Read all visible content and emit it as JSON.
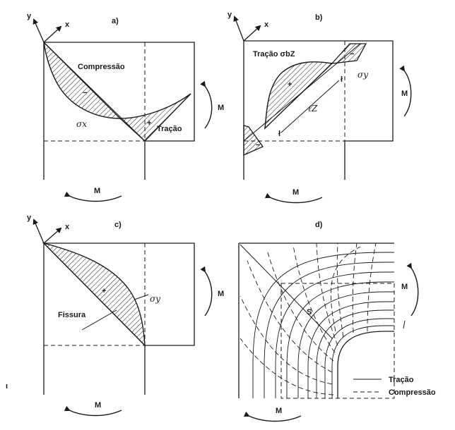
{
  "panels": {
    "a": {
      "id": "a)",
      "axis_y": "y",
      "axis_x": "x",
      "compression": "Compressão",
      "tension": "Tração",
      "sigma": "σx",
      "moment_right": "M",
      "moment_bottom": "M",
      "sign_minus": "−",
      "sign_plus": "+"
    },
    "b": {
      "id": "b)",
      "axis_y": "y",
      "axis_x": "x",
      "tension": "Tração σbZ",
      "sigma": "σy",
      "lever": "ℓZ",
      "moment_right": "M",
      "moment_bottom": "M",
      "sign_plus": "+",
      "sign_minus_top": "−",
      "sign_minus_bottom": "−"
    },
    "c": {
      "id": "c)",
      "axis_y": "y",
      "axis_x": "x",
      "crack": "Fissura",
      "sigma": "σy",
      "moment_right": "M",
      "moment_bottom": "M",
      "sign_plus": "+"
    },
    "d": {
      "id": "d)",
      "point": "S",
      "moment_right": "M",
      "moment_bottom": "M"
    }
  },
  "legend": {
    "tension": "Tração",
    "compression": "Compressão"
  },
  "stray_mark": "ι"
}
